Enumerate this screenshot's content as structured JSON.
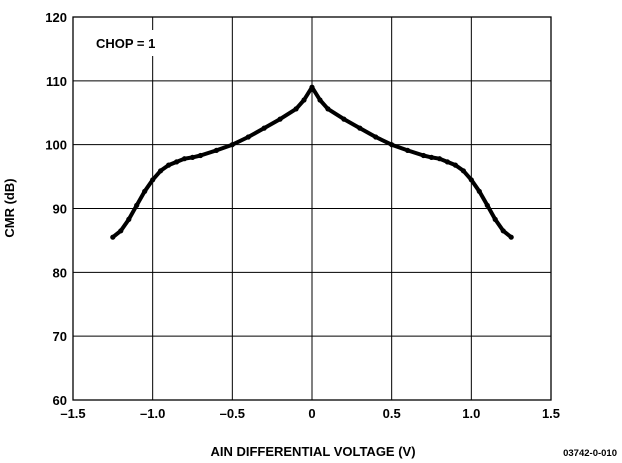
{
  "chart_data": {
    "type": "line",
    "title": "",
    "annotation": "CHOP = 1",
    "xlabel": "AIN DIFFERENTIAL VOLTAGE (V)",
    "ylabel": "CMR (dB)",
    "figure_id": "03742-0-010",
    "xlim": [
      -1.5,
      1.5
    ],
    "ylim": [
      60,
      120
    ],
    "x_ticks": [
      -1.5,
      -1.0,
      -0.5,
      0,
      0.5,
      1.0,
      1.5
    ],
    "x_tick_labels": [
      "–1.5",
      "–1.0",
      "–0.5",
      "0",
      "0.5",
      "1.0",
      "1.5"
    ],
    "y_ticks": [
      60,
      70,
      80,
      90,
      100,
      110,
      120
    ],
    "y_tick_labels": [
      "60",
      "70",
      "80",
      "90",
      "100",
      "110",
      "120"
    ],
    "grid": true,
    "line_color": "#000000",
    "series": [
      {
        "x": [
          -1.25,
          -1.2,
          -1.15,
          -1.1,
          -1.05,
          -1.0,
          -0.95,
          -0.9,
          -0.85,
          -0.8,
          -0.75,
          -0.7,
          -0.6,
          -0.5,
          -0.4,
          -0.3,
          -0.2,
          -0.1,
          -0.05,
          0,
          0.05,
          0.1,
          0.2,
          0.3,
          0.4,
          0.5,
          0.6,
          0.7,
          0.75,
          0.8,
          0.85,
          0.9,
          0.95,
          1.0,
          1.05,
          1.1,
          1.15,
          1.2,
          1.25
        ],
        "values": [
          85.5,
          86.5,
          88.3,
          90.5,
          92.7,
          94.5,
          95.9,
          96.8,
          97.3,
          97.8,
          98.0,
          98.3,
          99.1,
          100.0,
          101.2,
          102.6,
          104.0,
          105.6,
          107.0,
          109.0,
          107.0,
          105.6,
          104.0,
          102.6,
          101.2,
          100.0,
          99.1,
          98.3,
          98.0,
          97.8,
          97.3,
          96.8,
          95.9,
          94.5,
          92.7,
          90.5,
          88.3,
          86.5,
          85.5
        ]
      }
    ]
  }
}
